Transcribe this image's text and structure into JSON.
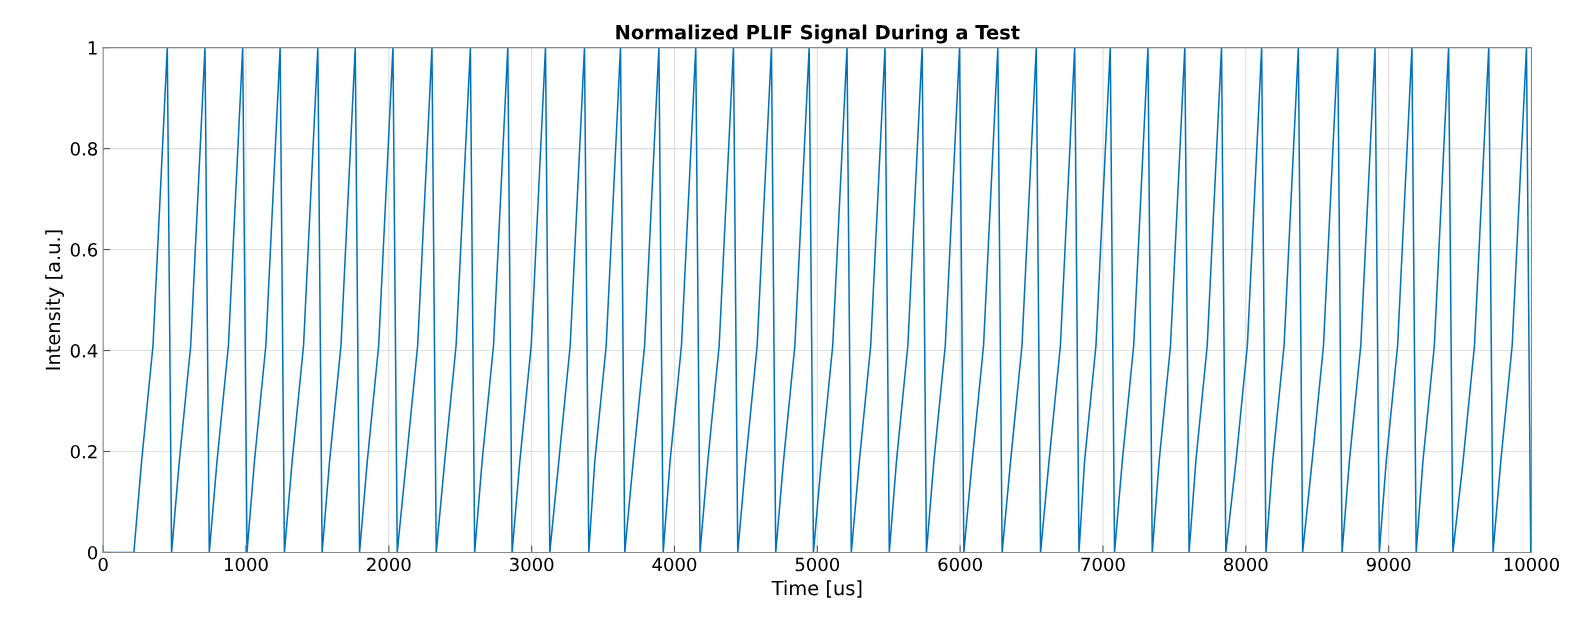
{
  "chart_data": {
    "type": "line",
    "title": "Normalized PLIF Signal During a Test",
    "xlabel": "Time [us]",
    "ylabel": "Intensity [a.u.]",
    "xlim": [
      0,
      10000
    ],
    "xticks": [
      0,
      1000,
      2000,
      3000,
      4000,
      5000,
      6000,
      7000,
      8000,
      9000,
      10000
    ],
    "ylim": [
      0,
      1
    ],
    "yticks": [
      0,
      0.2,
      0.4,
      0.6,
      0.8,
      1
    ],
    "grid": true,
    "marker": "none",
    "line_style": "solid",
    "series": [
      {
        "color": "#0072bd",
        "x": [
          0,
          215,
          269,
          349,
          449,
          479,
          533,
          613,
          713,
          743,
          797,
          877,
          977,
          1007,
          1059,
          1139,
          1239,
          1269,
          1323,
          1403,
          1503,
          1533,
          1585,
          1665,
          1765,
          1795,
          1849,
          1929,
          2029,
          2059,
          2122,
          2202,
          2302,
          2332,
          2391,
          2471,
          2571,
          2601,
          2653,
          2733,
          2833,
          2863,
          2917,
          2997,
          3097,
          3127,
          3190,
          3270,
          3370,
          3400,
          3442,
          3522,
          3622,
          3652,
          3711,
          3791,
          3891,
          3921,
          3969,
          4049,
          4149,
          4179,
          4233,
          4313,
          4413,
          4443,
          4499,
          4579,
          4679,
          4709,
          4763,
          4843,
          4943,
          4973,
          5028,
          5108,
          5208,
          5238,
          5294,
          5374,
          5474,
          5504,
          5554,
          5634,
          5734,
          5764,
          5816,
          5896,
          5996,
          6026,
          6084,
          6164,
          6264,
          6294,
          6353,
          6433,
          6533,
          6563,
          6622,
          6702,
          6802,
          6832,
          6871,
          6951,
          7051,
          7081,
          7135,
          7215,
          7315,
          7345,
          7393,
          7473,
          7573,
          7603,
          7650,
          7730,
          7830,
          7860,
          7931,
          8011,
          8111,
          8141,
          8188,
          8268,
          8368,
          8398,
          8464,
          8544,
          8644,
          8674,
          8725,
          8805,
          8905,
          8935,
          8983,
          9063,
          9163,
          9193,
          9240,
          9320,
          9420,
          9450,
          9521,
          9601,
          9701,
          9731,
          9785,
          9865,
          9965,
          9995
        ],
        "values": [
          0,
          0,
          0.18,
          0.41,
          1,
          0,
          0.18,
          0.41,
          1,
          0,
          0.18,
          0.41,
          1,
          0,
          0.18,
          0.41,
          1,
          0,
          0.18,
          0.41,
          1,
          0,
          0.18,
          0.41,
          1,
          0,
          0.18,
          0.41,
          1,
          0,
          0.18,
          0.41,
          1,
          0,
          0.18,
          0.41,
          1,
          0,
          0.18,
          0.41,
          1,
          0,
          0.18,
          0.41,
          1,
          0,
          0.18,
          0.41,
          1,
          0,
          0.18,
          0.41,
          1,
          0,
          0.18,
          0.41,
          1,
          0,
          0.18,
          0.41,
          1,
          0,
          0.18,
          0.41,
          1,
          0,
          0.18,
          0.41,
          1,
          0,
          0.18,
          0.41,
          1,
          0,
          0.18,
          0.41,
          1,
          0,
          0.18,
          0.41,
          1,
          0,
          0.18,
          0.41,
          1,
          0,
          0.18,
          0.41,
          1,
          0,
          0.18,
          0.41,
          1,
          0,
          0.18,
          0.41,
          1,
          0,
          0.18,
          0.41,
          1,
          0,
          0.18,
          0.41,
          1,
          0,
          0.18,
          0.41,
          1,
          0,
          0.18,
          0.41,
          1,
          0,
          0.18,
          0.41,
          1,
          0,
          0.18,
          0.41,
          1,
          0,
          0.18,
          0.41,
          1,
          0,
          0.18,
          0.41,
          1,
          0,
          0.18,
          0.41,
          1,
          0,
          0.18,
          0.41,
          1,
          0,
          0.18,
          0.41,
          1,
          0,
          0.18,
          0.41,
          1,
          0,
          0.18,
          0.41,
          1,
          0
        ]
      }
    ]
  }
}
